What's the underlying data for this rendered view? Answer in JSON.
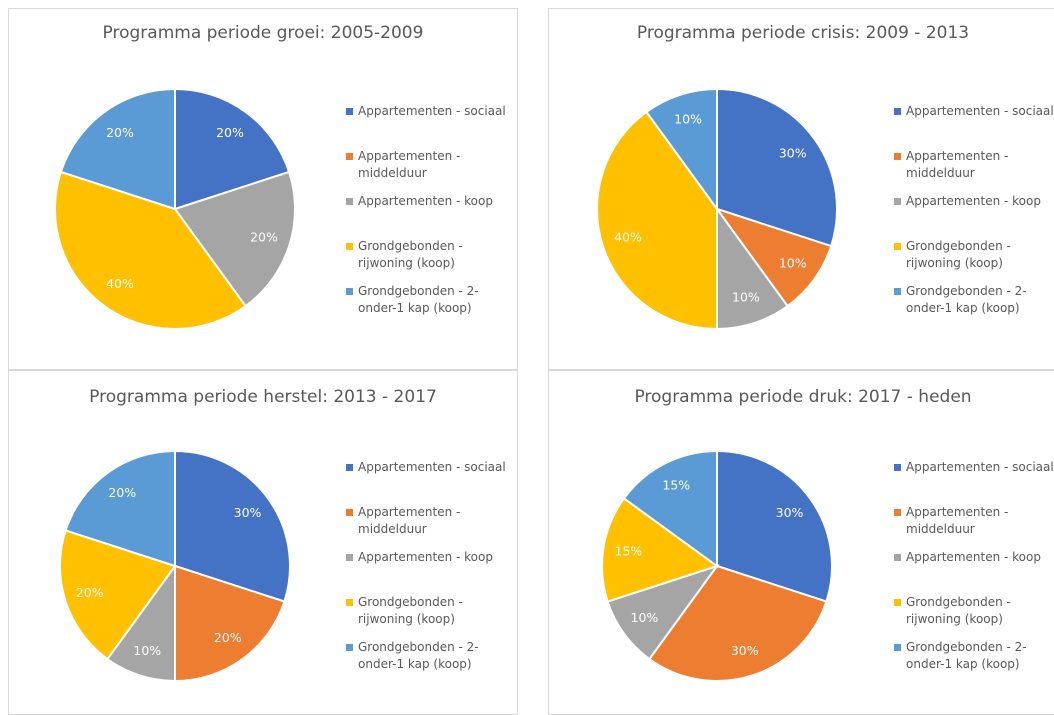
{
  "chart_data": [
    {
      "type": "pie",
      "title": "Programma periode groei: 2005-2009",
      "categories": [
        "Appartementen - sociaal",
        "Appartementen - middelduur",
        "Appartementen - koop",
        "Grondgebonden - rijwoning (koop)",
        "Grondgebonden - 2-onder-1 kap (koop)"
      ],
      "values": [
        20,
        0,
        20,
        40,
        20
      ],
      "value_labels": [
        "20%",
        null,
        "20%",
        "40%",
        "20%"
      ],
      "colors": [
        "#4472c4",
        "#ed7d31",
        "#a5a5a5",
        "#ffc000",
        "#5b9bd5"
      ]
    },
    {
      "type": "pie",
      "title": "Programma periode crisis: 2009 - 2013",
      "categories": [
        "Appartementen - sociaal",
        "Appartementen - middelduur",
        "Appartementen - koop",
        "Grondgebonden - rijwoning (koop)",
        "Grondgebonden - 2-onder-1 kap (koop)"
      ],
      "values": [
        30,
        10,
        10,
        40,
        10
      ],
      "value_labels": [
        "30%",
        "10%",
        "10%",
        "40%",
        "10%"
      ],
      "colors": [
        "#4472c4",
        "#ed7d31",
        "#a5a5a5",
        "#ffc000",
        "#5b9bd5"
      ]
    },
    {
      "type": "pie",
      "title": "Programma periode herstel: 2013 - 2017",
      "categories": [
        "Appartementen - sociaal",
        "Appartementen - middelduur",
        "Appartementen - koop",
        "Grondgebonden - rijwoning (koop)",
        "Grondgebonden - 2-onder-1 kap (koop)"
      ],
      "values": [
        30,
        20,
        10,
        20,
        20
      ],
      "value_labels": [
        "30%",
        "20%",
        "10%",
        "20%",
        "20%"
      ],
      "colors": [
        "#4472c4",
        "#ed7d31",
        "#a5a5a5",
        "#ffc000",
        "#5b9bd5"
      ]
    },
    {
      "type": "pie",
      "title": "Programma periode druk: 2017 - heden",
      "categories": [
        "Appartementen - sociaal",
        "Appartementen - middelduur",
        "Appartementen - koop",
        "Grondgebonden - rijwoning (koop)",
        "Grondgebonden - 2-onder-1 kap (koop)"
      ],
      "values": [
        30,
        30,
        10,
        15,
        15
      ],
      "value_labels": [
        "30%",
        "30%",
        "10%",
        "15%",
        "15%"
      ],
      "colors": [
        "#4472c4",
        "#ed7d31",
        "#a5a5a5",
        "#ffc000",
        "#5b9bd5"
      ]
    }
  ]
}
